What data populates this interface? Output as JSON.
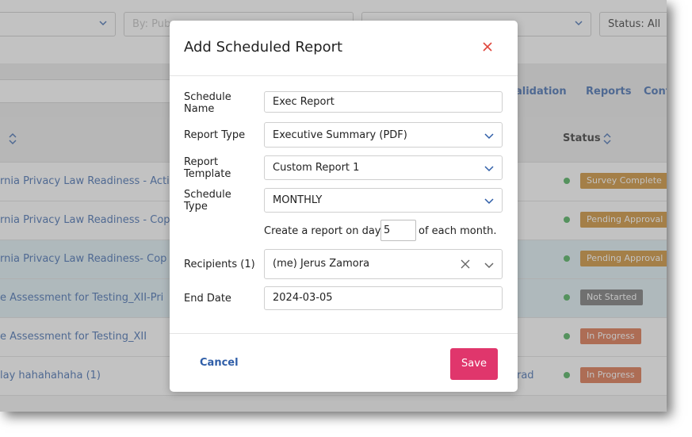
{
  "filters": {
    "publisher_placeholder": "By: Pub",
    "status_label": "Status: All"
  },
  "toolbar": {
    "link_validation": "alidation",
    "link_reports": "Reports",
    "link_cont": "Cont"
  },
  "table": {
    "status_header": "Status",
    "rows": [
      {
        "name": "rnia Privacy Law Readiness - Acti",
        "status": "Survey Complete",
        "status_color": "#c98622",
        "highlight": false,
        "extra": ""
      },
      {
        "name": "rnia Privacy Law Readiness - Cop",
        "status": "Pending Approval",
        "status_color": "#c98622",
        "highlight": false,
        "extra": ""
      },
      {
        "name": "rnia Privacy Law Readiness- Cop",
        "status": "Pending Approval",
        "status_color": "#c98622",
        "highlight": true,
        "extra": ""
      },
      {
        "name": "e Assessment for Testing_XII-Pri",
        "status": "Not Started",
        "status_color": "#6b6b6b",
        "highlight": true,
        "extra": ""
      },
      {
        "name": "e Assessment for Testing_XII",
        "status": "In Progress",
        "status_color": "#d9643a",
        "highlight": false,
        "extra": ""
      },
      {
        "name": "lay hahahahaha (1)",
        "status": "In Progress",
        "status_color": "#d9643a",
        "highlight": false,
        "extra": "rad"
      }
    ]
  },
  "modal": {
    "title": "Add Scheduled Report",
    "labels": {
      "schedule_name": "Schedule Name",
      "report_type": "Report Type",
      "report_template": "Report Template",
      "schedule_type": "Schedule Type",
      "recipients": "Recipients (1)",
      "end_date": "End Date"
    },
    "values": {
      "schedule_name": "Exec Report",
      "report_type": "Executive Summary (PDF)",
      "report_template": "Custom Report 1",
      "schedule_type": "MONTHLY",
      "day_prefix": "Create a report on day",
      "day_value": "5",
      "day_suffix": "of each month.",
      "recipients": "(me) Jerus Zamora",
      "end_date": "2024-03-05"
    },
    "buttons": {
      "cancel": "Cancel",
      "save": "Save"
    }
  },
  "colors": {
    "link": "#2f5ea8",
    "save": "#e0366c",
    "close": "#e0463c"
  }
}
